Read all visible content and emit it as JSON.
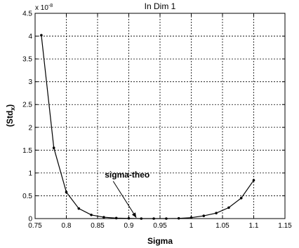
{
  "chart_data": {
    "type": "line",
    "title": "In Dim 1",
    "xlabel": "Sigma",
    "ylabel_main": "(Std",
    "ylabel_sub": "x",
    "ylabel_close": ")",
    "exponent_base": "x 10",
    "exponent_power": "-8",
    "xlim": [
      0.75,
      1.15
    ],
    "ylim": [
      0,
      4.5
    ],
    "xticks": [
      0.75,
      0.8,
      0.85,
      0.9,
      0.95,
      1,
      1.05,
      1.1,
      1.15
    ],
    "xtick_labels": [
      "0.75",
      "0.8",
      "0.85",
      "0.9",
      "0.95",
      "1",
      "1.05",
      "1.1",
      "1.15"
    ],
    "yticks": [
      0,
      0.5,
      1,
      1.5,
      2,
      2.5,
      3,
      3.5,
      4,
      4.5
    ],
    "ytick_labels": [
      "0",
      "0.5",
      "1",
      "1.5",
      "2",
      "2.5",
      "3",
      "3.5",
      "4",
      "4.5"
    ],
    "grid": true,
    "series": [
      {
        "x": [
          0.76,
          0.78,
          0.8,
          0.82,
          0.84,
          0.86,
          0.88,
          0.9,
          0.92,
          0.94,
          0.96,
          0.98,
          1.0,
          1.02,
          1.04,
          1.06,
          1.08,
          1.1
        ],
        "y": [
          4.02,
          1.55,
          0.58,
          0.22,
          0.08,
          0.03,
          0.01,
          0.005,
          0.0,
          0.0,
          0.0,
          0.005,
          0.02,
          0.06,
          0.12,
          0.24,
          0.45,
          0.84
        ],
        "color": "#000000"
      }
    ],
    "annotations": [
      {
        "text": "sigma-theo",
        "arrow_from": [
          0.875,
          0.82
        ],
        "arrow_to": [
          0.912,
          0.02
        ]
      }
    ]
  }
}
